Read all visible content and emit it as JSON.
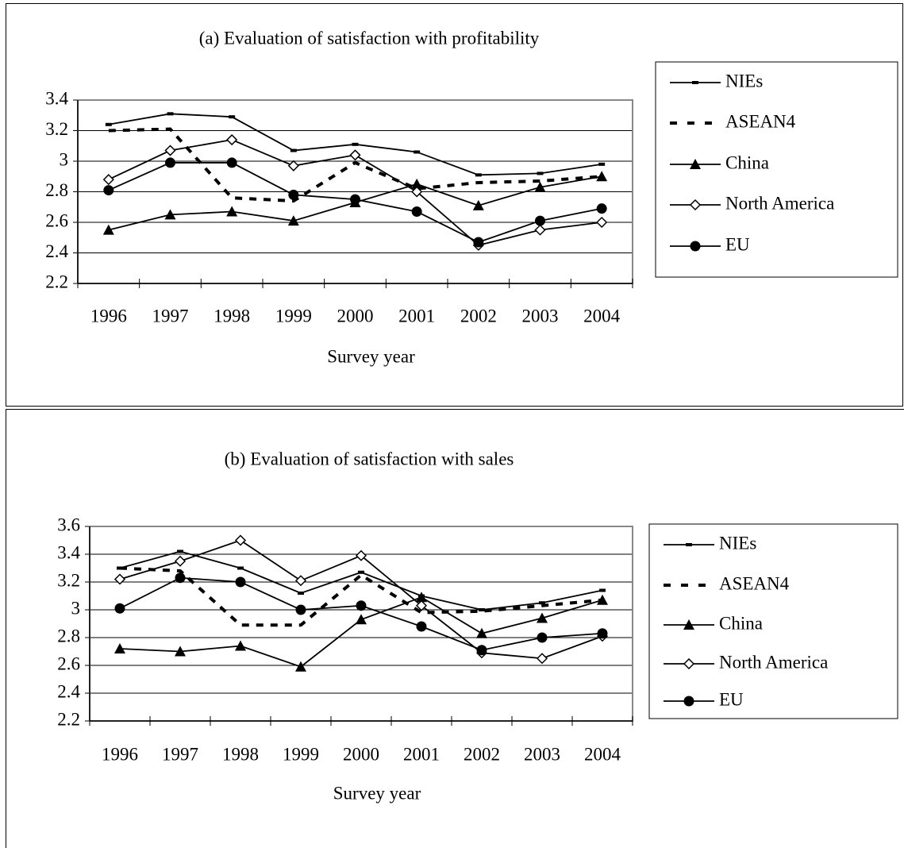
{
  "chart_data": [
    {
      "type": "line",
      "title": "(a) Evaluation of satisfaction with profitability",
      "x_label": "Survey year",
      "categories": [
        "1996",
        "1997",
        "1998",
        "1999",
        "2000",
        "2001",
        "2002",
        "2003",
        "2004"
      ],
      "ylim": [
        2.2,
        3.4
      ],
      "yticks": [
        2.2,
        2.4,
        2.6,
        2.8,
        3,
        3.2,
        3.4
      ],
      "grid": true,
      "legend": "right",
      "series": [
        {
          "name": "NIEs",
          "color": "#000000",
          "marker": "dash",
          "values": [
            3.24,
            3.31,
            3.29,
            3.07,
            3.11,
            3.06,
            2.91,
            2.92,
            2.98
          ]
        },
        {
          "name": "ASEAN4",
          "color": "#000000",
          "line_style": "dashed",
          "values": [
            3.2,
            3.21,
            2.76,
            2.74,
            2.99,
            2.82,
            2.86,
            2.87,
            2.9
          ]
        },
        {
          "name": "China",
          "color": "#000000",
          "marker": "triangle",
          "values": [
            2.55,
            2.65,
            2.67,
            2.61,
            2.73,
            2.85,
            2.71,
            2.83,
            2.9
          ]
        },
        {
          "name": "North America",
          "color": "#000000",
          "marker": "open-diamond",
          "values": [
            2.88,
            3.07,
            3.14,
            2.97,
            3.04,
            2.8,
            2.45,
            2.55,
            2.6
          ]
        },
        {
          "name": "EU",
          "color": "#000000",
          "marker": "circle",
          "values": [
            2.81,
            2.99,
            2.99,
            2.78,
            2.75,
            2.67,
            2.47,
            2.61,
            2.69
          ]
        }
      ]
    },
    {
      "type": "line",
      "title": "(b) Evaluation of satisfaction with sales",
      "x_label": "Survey year",
      "categories": [
        "1996",
        "1997",
        "1998",
        "1999",
        "2000",
        "2001",
        "2002",
        "2003",
        "2004"
      ],
      "ylim": [
        2.2,
        3.6
      ],
      "yticks": [
        2.2,
        2.4,
        2.6,
        2.8,
        3,
        3.2,
        3.4,
        3.6
      ],
      "grid": true,
      "legend": "right",
      "series": [
        {
          "name": "NIEs",
          "color": "#000000",
          "marker": "dash",
          "values": [
            3.3,
            3.42,
            3.3,
            3.12,
            3.27,
            3.1,
            3.0,
            3.05,
            3.14
          ]
        },
        {
          "name": "ASEAN4",
          "color": "#000000",
          "line_style": "dashed",
          "values": [
            3.3,
            3.28,
            2.89,
            2.89,
            3.25,
            2.98,
            2.99,
            3.03,
            3.07
          ]
        },
        {
          "name": "China",
          "color": "#000000",
          "marker": "triangle",
          "values": [
            2.72,
            2.7,
            2.74,
            2.59,
            2.93,
            3.09,
            2.83,
            2.94,
            3.07
          ]
        },
        {
          "name": "North America",
          "color": "#000000",
          "marker": "open-diamond",
          "values": [
            3.22,
            3.35,
            3.5,
            3.21,
            3.39,
            3.03,
            2.69,
            2.65,
            2.81
          ]
        },
        {
          "name": "EU",
          "color": "#000000",
          "marker": "circle",
          "values": [
            3.01,
            3.23,
            3.2,
            3.0,
            3.03,
            2.88,
            2.71,
            2.8,
            2.83
          ]
        }
      ]
    }
  ]
}
